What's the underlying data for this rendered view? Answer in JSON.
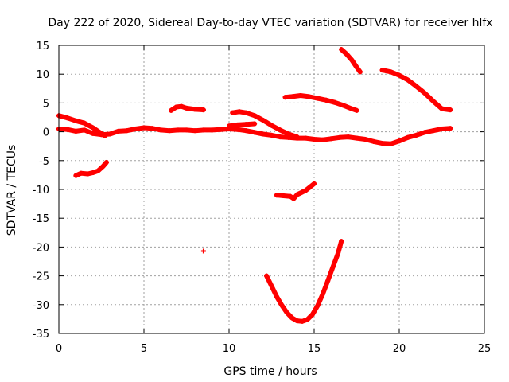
{
  "chart_data": {
    "type": "scatter",
    "title": "Day 222 of 2020, Sidereal Day-to-day VTEC variation (SDTVAR) for receiver hlfx",
    "xlabel": "GPS time / hours",
    "ylabel": "SDTVAR / TECUs",
    "xlim": [
      0,
      25
    ],
    "ylim": [
      -35,
      15
    ],
    "xticks": [
      0,
      5,
      10,
      15,
      20,
      25
    ],
    "yticks": [
      -35,
      -30,
      -25,
      -20,
      -15,
      -10,
      -5,
      0,
      5,
      10,
      15
    ],
    "grid": true,
    "marker_color": "#ff0000",
    "series": [
      {
        "name": "baseline-near-zero",
        "points": [
          [
            0.0,
            0.5
          ],
          [
            0.5,
            0.4
          ],
          [
            1.0,
            0.1
          ],
          [
            1.5,
            0.3
          ],
          [
            2.0,
            -0.3
          ],
          [
            2.5,
            -0.5
          ],
          [
            3.0,
            -0.4
          ],
          [
            3.5,
            0.1
          ],
          [
            4.0,
            0.2
          ],
          [
            4.5,
            0.5
          ],
          [
            5.0,
            0.7
          ],
          [
            5.5,
            0.6
          ],
          [
            6.0,
            0.3
          ],
          [
            6.5,
            0.2
          ],
          [
            7.0,
            0.3
          ],
          [
            7.5,
            0.3
          ],
          [
            8.0,
            0.2
          ],
          [
            8.5,
            0.3
          ],
          [
            9.0,
            0.3
          ],
          [
            9.5,
            0.4
          ],
          [
            10.0,
            0.5
          ],
          [
            10.5,
            0.4
          ],
          [
            11.0,
            0.2
          ],
          [
            11.5,
            -0.1
          ],
          [
            12.0,
            -0.4
          ],
          [
            12.5,
            -0.6
          ],
          [
            13.0,
            -0.9
          ],
          [
            13.5,
            -1.0
          ],
          [
            14.0,
            -1.1
          ],
          [
            14.5,
            -1.1
          ],
          [
            15.0,
            -1.3
          ],
          [
            15.5,
            -1.4
          ],
          [
            16.0,
            -1.2
          ],
          [
            16.5,
            -1.0
          ],
          [
            17.0,
            -0.9
          ],
          [
            17.5,
            -1.1
          ],
          [
            18.0,
            -1.3
          ],
          [
            18.5,
            -1.7
          ],
          [
            19.0,
            -2.0
          ],
          [
            19.5,
            -2.1
          ],
          [
            20.0,
            -1.6
          ],
          [
            20.5,
            -1.0
          ],
          [
            21.0,
            -0.6
          ],
          [
            21.5,
            -0.1
          ],
          [
            22.0,
            0.2
          ],
          [
            22.5,
            0.5
          ],
          [
            23.0,
            0.6
          ]
        ]
      },
      {
        "name": "early-descending",
        "points": [
          [
            0.0,
            2.8
          ],
          [
            0.5,
            2.4
          ],
          [
            1.0,
            1.9
          ],
          [
            1.5,
            1.5
          ],
          [
            2.0,
            0.7
          ],
          [
            2.5,
            -0.3
          ],
          [
            2.7,
            -0.7
          ]
        ]
      },
      {
        "name": "early-negative",
        "points": [
          [
            1.0,
            -7.6
          ],
          [
            1.3,
            -7.2
          ],
          [
            1.7,
            -7.3
          ],
          [
            2.0,
            -7.1
          ],
          [
            2.3,
            -6.8
          ],
          [
            2.6,
            -6.0
          ],
          [
            2.8,
            -5.3
          ]
        ]
      },
      {
        "name": "arc-near-7h",
        "points": [
          [
            6.6,
            3.7
          ],
          [
            6.9,
            4.3
          ],
          [
            7.2,
            4.4
          ],
          [
            7.5,
            4.1
          ],
          [
            8.0,
            3.9
          ],
          [
            8.5,
            3.8
          ]
        ]
      },
      {
        "name": "isolated-point",
        "points": [
          [
            8.5,
            -20.7
          ]
        ]
      },
      {
        "name": "arc-10h-to-13h",
        "points": [
          [
            10.2,
            3.3
          ],
          [
            10.6,
            3.5
          ],
          [
            11.0,
            3.3
          ],
          [
            11.5,
            2.8
          ],
          [
            12.0,
            2.0
          ],
          [
            12.5,
            1.1
          ],
          [
            13.0,
            0.3
          ],
          [
            13.5,
            -0.4
          ],
          [
            14.0,
            -0.9
          ]
        ]
      },
      {
        "name": "arc-10h-flat",
        "points": [
          [
            10.0,
            1.0
          ],
          [
            10.5,
            1.2
          ],
          [
            11.0,
            1.3
          ],
          [
            11.5,
            1.4
          ]
        ]
      },
      {
        "name": "arc-13h-negative",
        "points": [
          [
            12.8,
            -11.0
          ],
          [
            13.2,
            -11.1
          ],
          [
            13.6,
            -11.2
          ],
          [
            13.8,
            -11.6
          ],
          [
            14.0,
            -10.9
          ],
          [
            14.5,
            -10.2
          ],
          [
            15.0,
            -9.0
          ]
        ]
      },
      {
        "name": "arc-13h-to-17h",
        "points": [
          [
            13.3,
            6.0
          ],
          [
            13.7,
            6.1
          ],
          [
            14.2,
            6.3
          ],
          [
            14.7,
            6.1
          ],
          [
            15.2,
            5.8
          ],
          [
            15.7,
            5.5
          ],
          [
            16.2,
            5.1
          ],
          [
            16.7,
            4.6
          ],
          [
            17.2,
            4.0
          ],
          [
            17.5,
            3.7
          ]
        ]
      },
      {
        "name": "arc-16h-descending",
        "points": [
          [
            16.6,
            14.3
          ],
          [
            16.9,
            13.5
          ],
          [
            17.2,
            12.5
          ],
          [
            17.5,
            11.2
          ],
          [
            17.7,
            10.4
          ]
        ]
      },
      {
        "name": "arc-19h-to-23h",
        "points": [
          [
            19.0,
            10.7
          ],
          [
            19.5,
            10.4
          ],
          [
            20.0,
            9.8
          ],
          [
            20.5,
            9.0
          ],
          [
            21.0,
            7.9
          ],
          [
            21.5,
            6.7
          ],
          [
            22.0,
            5.3
          ],
          [
            22.5,
            4.0
          ],
          [
            23.0,
            3.8
          ]
        ]
      },
      {
        "name": "deep-u-curve",
        "points": [
          [
            12.2,
            -25.0
          ],
          [
            12.5,
            -26.8
          ],
          [
            12.8,
            -28.6
          ],
          [
            13.1,
            -30.1
          ],
          [
            13.4,
            -31.4
          ],
          [
            13.7,
            -32.3
          ],
          [
            14.0,
            -32.8
          ],
          [
            14.3,
            -32.9
          ],
          [
            14.6,
            -32.6
          ],
          [
            14.9,
            -31.7
          ],
          [
            15.2,
            -30.2
          ],
          [
            15.5,
            -28.2
          ],
          [
            15.8,
            -25.9
          ],
          [
            16.1,
            -23.5
          ],
          [
            16.4,
            -21.1
          ],
          [
            16.6,
            -19.0
          ]
        ]
      }
    ]
  }
}
